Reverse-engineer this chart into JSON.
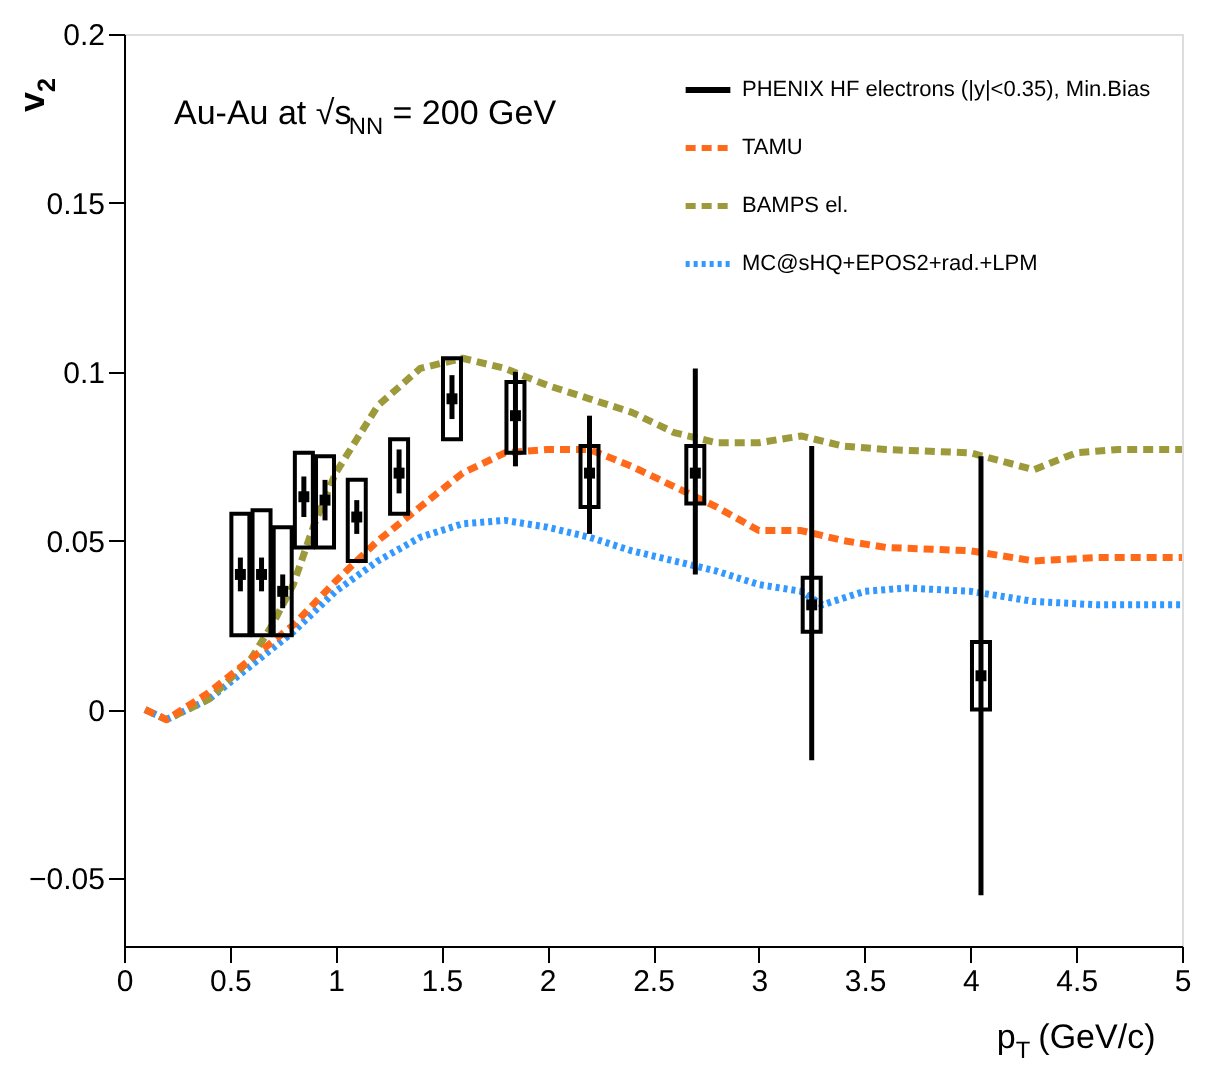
{
  "chart_data": {
    "type": "line",
    "xlabel": "p$_{T}$ (GeV/c)",
    "ylabel": "v$_{2}$",
    "annotations": [
      "Au-Au at √s$_{NN}$ = 200 GeV"
    ],
    "xlim": [
      0,
      5
    ],
    "ylim": [
      -0.07,
      0.2
    ],
    "xticks": [
      0,
      0.5,
      1,
      1.5,
      2,
      2.5,
      3,
      3.5,
      4,
      4.5,
      5
    ],
    "yticks": [
      -0.05,
      0,
      0.05,
      0.1,
      0.15,
      0.2
    ],
    "grid": false,
    "legend": "top right",
    "series": [
      {
        "name": "PHENIX HF electrons (|y|<0.35), Min.Bias",
        "type": "scatter",
        "marker": "square",
        "color": "#000000",
        "x": [
          0.55,
          0.65,
          0.75,
          0.85,
          0.95,
          1.1,
          1.3,
          1.55,
          1.85,
          2.2,
          2.7,
          3.25,
          4.05
        ],
        "values": [
          0.04,
          0.04,
          0.035,
          0.063,
          0.062,
          0.057,
          0.07,
          0.092,
          0.087,
          0.07,
          0.07,
          0.031,
          0.01
        ],
        "errors": [
          [
            0.035,
            0.045
          ],
          [
            0.035,
            0.045
          ],
          [
            0.03,
            0.04
          ],
          [
            0.057,
            0.069
          ],
          [
            0.056,
            0.068
          ],
          [
            0.052,
            0.062
          ],
          [
            0.064,
            0.077
          ],
          [
            0.086,
            0.099
          ],
          [
            0.072,
            0.1
          ],
          [
            0.052,
            0.087
          ],
          [
            0.04,
            0.101
          ],
          [
            -0.015,
            0.078
          ],
          [
            -0.055,
            0.075
          ]
        ]
      },
      {
        "type": "bar",
        "color": "#000000",
        "x": [
          0.55,
          0.65,
          0.75,
          0.85,
          0.95,
          1.1,
          1.3,
          1.55,
          1.85,
          2.2,
          2.7,
          3.25,
          4.05
        ],
        "base": [
          0.022,
          0.022,
          0.022,
          0.048,
          0.048,
          0.044,
          0.058,
          0.08,
          0.076,
          0.06,
          0.061,
          0.023,
          0.0
        ],
        "values": [
          0.036,
          0.037,
          0.032,
          0.028,
          0.027,
          0.024,
          0.022,
          0.024,
          0.021,
          0.018,
          0.017,
          0.016,
          0.02
        ]
      },
      {
        "name": "TAMU",
        "type": "line",
        "line_style": "dashed",
        "color": "#ff6a1a",
        "x": [
          0.1,
          0.2,
          0.4,
          0.6,
          0.8,
          1.0,
          1.2,
          1.4,
          1.6,
          1.8,
          2.0,
          2.2,
          2.4,
          2.6,
          2.8,
          3.0,
          3.2,
          3.4,
          3.6,
          4.0,
          4.3,
          4.6,
          5.0
        ],
        "values": [
          0,
          -0.003,
          0.005,
          0.015,
          0.025,
          0.038,
          0.05,
          0.06,
          0.07,
          0.076,
          0.077,
          0.077,
          0.072,
          0.066,
          0.06,
          0.053,
          0.053,
          0.05,
          0.048,
          0.047,
          0.044,
          0.045,
          0.045
        ]
      },
      {
        "name": "BAMPS el.",
        "type": "line",
        "line_style": "dashed",
        "color": "#9c9a3a",
        "x": [
          0.1,
          0.2,
          0.4,
          0.6,
          0.7,
          0.8,
          0.9,
          1.0,
          1.2,
          1.4,
          1.6,
          1.8,
          2.0,
          2.2,
          2.4,
          2.6,
          2.8,
          3.0,
          3.2,
          3.4,
          3.6,
          4.0,
          4.3,
          4.5,
          4.7,
          5.0
        ],
        "values": [
          0,
          -0.003,
          0.003,
          0.015,
          0.025,
          0.037,
          0.055,
          0.07,
          0.09,
          0.101,
          0.104,
          0.101,
          0.096,
          0.092,
          0.088,
          0.082,
          0.079,
          0.079,
          0.081,
          0.078,
          0.077,
          0.076,
          0.071,
          0.076,
          0.077,
          0.077
        ]
      },
      {
        "name": "MC@sHQ+EPOS2+rad.+LPM",
        "type": "line",
        "line_style": "dotted",
        "color": "#3399ff",
        "x": [
          0.1,
          0.2,
          0.4,
          0.6,
          0.8,
          1.0,
          1.2,
          1.4,
          1.6,
          1.8,
          2.0,
          2.2,
          2.4,
          2.6,
          2.8,
          3.0,
          3.2,
          3.3,
          3.5,
          3.7,
          4.0,
          4.3,
          4.6,
          5.0
        ],
        "values": [
          0,
          -0.003,
          0.003,
          0.013,
          0.023,
          0.035,
          0.044,
          0.051,
          0.055,
          0.056,
          0.054,
          0.051,
          0.047,
          0.044,
          0.041,
          0.037,
          0.035,
          0.031,
          0.035,
          0.036,
          0.035,
          0.032,
          0.031,
          0.031
        ]
      }
    ]
  }
}
